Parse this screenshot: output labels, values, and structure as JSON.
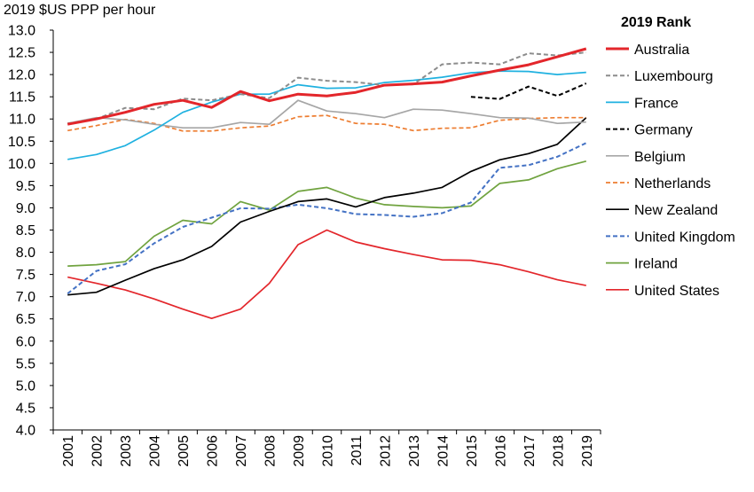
{
  "chart_data": {
    "type": "line",
    "ylabel": "2019 $US PPP per hour",
    "xlabel": "",
    "legend_title": "2019 Rank",
    "legend_position": "right",
    "ylim": [
      4.0,
      13.0
    ],
    "yticks": [
      "4.0",
      "4.5",
      "5.0",
      "5.5",
      "6.0",
      "6.5",
      "7.0",
      "7.5",
      "8.0",
      "8.5",
      "9.0",
      "9.5",
      "10.0",
      "10.5",
      "11.0",
      "11.5",
      "12.0",
      "12.5",
      "13.0"
    ],
    "x": [
      "2001",
      "2002",
      "2003",
      "2004",
      "2005",
      "2006",
      "2007",
      "2008",
      "2009",
      "2010",
      "2011",
      "2012",
      "2013",
      "2014",
      "2015",
      "2016",
      "2017",
      "2018",
      "2019"
    ],
    "grid": false,
    "series": [
      {
        "name": "Australia",
        "color": "#e3262b",
        "dash": "solid",
        "width": 3,
        "values": [
          10.88,
          11.0,
          11.15,
          11.33,
          11.42,
          11.26,
          11.62,
          11.41,
          11.56,
          11.52,
          11.6,
          11.76,
          11.79,
          11.83,
          11.97,
          12.1,
          12.22,
          12.4,
          12.58
        ]
      },
      {
        "name": "Luxembourg",
        "color": "#8c8c8c",
        "dash": "dashed",
        "width": 2,
        "values": [
          10.9,
          11.0,
          11.25,
          11.22,
          11.46,
          11.42,
          11.56,
          11.47,
          11.93,
          11.86,
          11.83,
          11.76,
          11.78,
          12.23,
          12.27,
          12.23,
          12.48,
          12.43,
          12.5
        ]
      },
      {
        "name": "France",
        "color": "#1fb1e0",
        "dash": "solid",
        "width": 1.7,
        "values": [
          10.09,
          10.2,
          10.4,
          10.75,
          11.15,
          11.38,
          11.56,
          11.56,
          11.77,
          11.69,
          11.7,
          11.82,
          11.87,
          11.94,
          12.04,
          12.08,
          12.07,
          12.0,
          12.05
        ]
      },
      {
        "name": "Germany",
        "color": "#000000",
        "dash": "dashed",
        "width": 2,
        "values": [
          null,
          null,
          null,
          null,
          null,
          null,
          null,
          null,
          null,
          null,
          null,
          null,
          null,
          null,
          11.5,
          11.45,
          11.73,
          11.52,
          11.8
        ]
      },
      {
        "name": "Belgium",
        "color": "#a6a6a6",
        "dash": "solid",
        "width": 1.7,
        "values": [
          10.9,
          11.03,
          10.98,
          10.88,
          10.8,
          10.8,
          10.92,
          10.88,
          11.42,
          11.18,
          11.12,
          11.03,
          11.22,
          11.2,
          11.12,
          11.03,
          11.02,
          10.9,
          10.93
        ]
      },
      {
        "name": "Netherlands",
        "color": "#ed7d31",
        "dash": "dashed",
        "width": 1.7,
        "values": [
          10.74,
          10.85,
          10.99,
          10.9,
          10.73,
          10.73,
          10.8,
          10.84,
          11.05,
          11.08,
          10.9,
          10.88,
          10.74,
          10.79,
          10.8,
          10.97,
          11.01,
          11.03,
          11.03
        ]
      },
      {
        "name": "New Zealand",
        "color": "#000000",
        "dash": "solid",
        "width": 1.7,
        "values": [
          7.04,
          7.1,
          7.37,
          7.63,
          7.83,
          8.13,
          8.68,
          8.92,
          9.14,
          9.2,
          9.02,
          9.23,
          9.33,
          9.46,
          9.82,
          10.08,
          10.22,
          10.43,
          11.03
        ]
      },
      {
        "name": "United Kingdom",
        "color": "#4472c4",
        "dash": "dashed",
        "width": 2,
        "values": [
          7.07,
          7.58,
          7.73,
          8.2,
          8.57,
          8.78,
          8.99,
          8.98,
          9.07,
          8.99,
          8.86,
          8.84,
          8.8,
          8.88,
          9.12,
          9.9,
          9.96,
          10.15,
          10.46
        ]
      },
      {
        "name": "Ireland",
        "color": "#70a33f",
        "dash": "solid",
        "width": 1.7,
        "values": [
          7.69,
          7.72,
          7.79,
          8.36,
          8.72,
          8.64,
          9.14,
          8.95,
          9.37,
          9.46,
          9.22,
          9.07,
          9.03,
          9.0,
          9.04,
          9.55,
          9.63,
          9.88,
          10.05
        ]
      },
      {
        "name": "United States",
        "color": "#e3262b",
        "dash": "solid",
        "width": 1.7,
        "values": [
          7.44,
          7.3,
          7.15,
          6.95,
          6.72,
          6.51,
          6.72,
          7.3,
          8.17,
          8.5,
          8.23,
          8.08,
          7.95,
          7.83,
          7.82,
          7.72,
          7.56,
          7.38,
          7.25
        ]
      }
    ]
  }
}
